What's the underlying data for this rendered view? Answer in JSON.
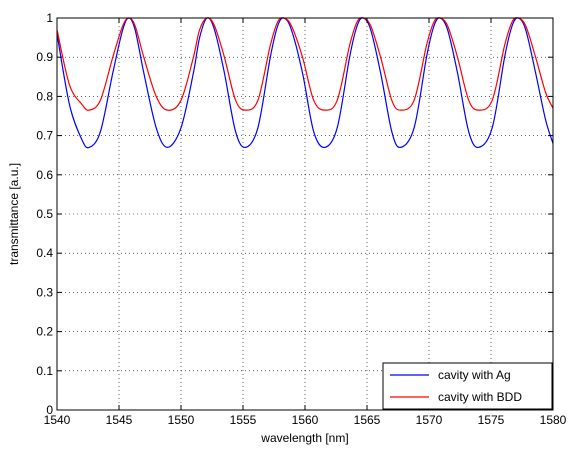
{
  "chart_data": {
    "type": "line",
    "xlabel": "wavelength [nm]",
    "ylabel": "transmittance [a.u.]",
    "xlim": [
      1540,
      1580
    ],
    "ylim": [
      0,
      1
    ],
    "xticks": [
      1540,
      1545,
      1550,
      1555,
      1560,
      1565,
      1570,
      1575,
      1580
    ],
    "yticks": [
      0,
      0.1,
      0.2,
      0.3,
      0.4,
      0.5,
      0.6,
      0.7,
      0.8,
      0.9,
      1
    ],
    "xtick_labels": [
      "1540",
      "1545",
      "1550",
      "1555",
      "1560",
      "1565",
      "1570",
      "1575",
      "1580"
    ],
    "ytick_labels": [
      "0",
      "0.1",
      "0.2",
      "0.3",
      "0.4",
      "0.5",
      "0.6",
      "0.7",
      "0.8",
      "0.9",
      "1"
    ],
    "grid": true,
    "grid_style": "dotted",
    "legend_position": "bottom-right",
    "series": [
      {
        "name": "cavity with Ag",
        "color": "#0000ff",
        "x": [
          1540,
          1541,
          1542,
          1542.6,
          1543.5,
          1544.5,
          1545.3,
          1545.8,
          1546.3,
          1547,
          1548,
          1548.9,
          1550,
          1551,
          1551.5,
          1552.1,
          1552.7,
          1553.5,
          1554.4,
          1555.2,
          1556.2,
          1557.2,
          1557.8,
          1558.3,
          1558.9,
          1559.8,
          1560.7,
          1561.6,
          1562.6,
          1563.6,
          1564.2,
          1564.7,
          1565.3,
          1566.1,
          1567,
          1567.7,
          1568.8,
          1569.8,
          1570.4,
          1570.9,
          1571.5,
          1572.3,
          1573.2,
          1574,
          1575.1,
          1576.1,
          1576.7,
          1577.2,
          1577.8,
          1578.6,
          1579.4,
          1580
        ],
        "y": [
          0.96,
          0.78,
          0.69,
          0.67,
          0.71,
          0.86,
          0.97,
          1.0,
          0.97,
          0.86,
          0.72,
          0.67,
          0.72,
          0.86,
          0.95,
          1.0,
          0.97,
          0.86,
          0.71,
          0.67,
          0.72,
          0.9,
          0.98,
          1.0,
          0.97,
          0.86,
          0.71,
          0.67,
          0.72,
          0.9,
          0.98,
          1.0,
          0.97,
          0.86,
          0.71,
          0.67,
          0.72,
          0.9,
          0.98,
          1.0,
          0.97,
          0.86,
          0.71,
          0.67,
          0.72,
          0.9,
          0.98,
          1.0,
          0.97,
          0.86,
          0.74,
          0.68
        ]
      },
      {
        "name": "cavity with BDD",
        "color": "#ff0000",
        "x": [
          1540,
          1541,
          1542,
          1542.6,
          1543.5,
          1544.5,
          1545.3,
          1545.8,
          1546.3,
          1547,
          1548,
          1548.9,
          1550,
          1551,
          1551.5,
          1552.1,
          1552.7,
          1553.5,
          1554.4,
          1555.2,
          1556.2,
          1557.2,
          1557.8,
          1558.3,
          1558.9,
          1559.8,
          1560.7,
          1561.6,
          1562.6,
          1563.6,
          1564.2,
          1564.7,
          1565.3,
          1566.1,
          1567,
          1567.7,
          1568.8,
          1569.8,
          1570.4,
          1570.9,
          1571.5,
          1572.3,
          1573.2,
          1574,
          1575.1,
          1576.1,
          1576.7,
          1577.2,
          1577.8,
          1578.6,
          1579.4,
          1580
        ],
        "y": [
          0.97,
          0.83,
          0.78,
          0.765,
          0.79,
          0.9,
          0.98,
          1.0,
          0.98,
          0.9,
          0.8,
          0.765,
          0.79,
          0.9,
          0.97,
          1.0,
          0.98,
          0.9,
          0.79,
          0.765,
          0.79,
          0.93,
          0.99,
          1.0,
          0.98,
          0.9,
          0.79,
          0.765,
          0.79,
          0.93,
          0.99,
          1.0,
          0.98,
          0.9,
          0.79,
          0.765,
          0.79,
          0.93,
          0.99,
          1.0,
          0.98,
          0.9,
          0.79,
          0.765,
          0.79,
          0.93,
          0.99,
          1.0,
          0.98,
          0.9,
          0.81,
          0.77
        ]
      }
    ]
  }
}
